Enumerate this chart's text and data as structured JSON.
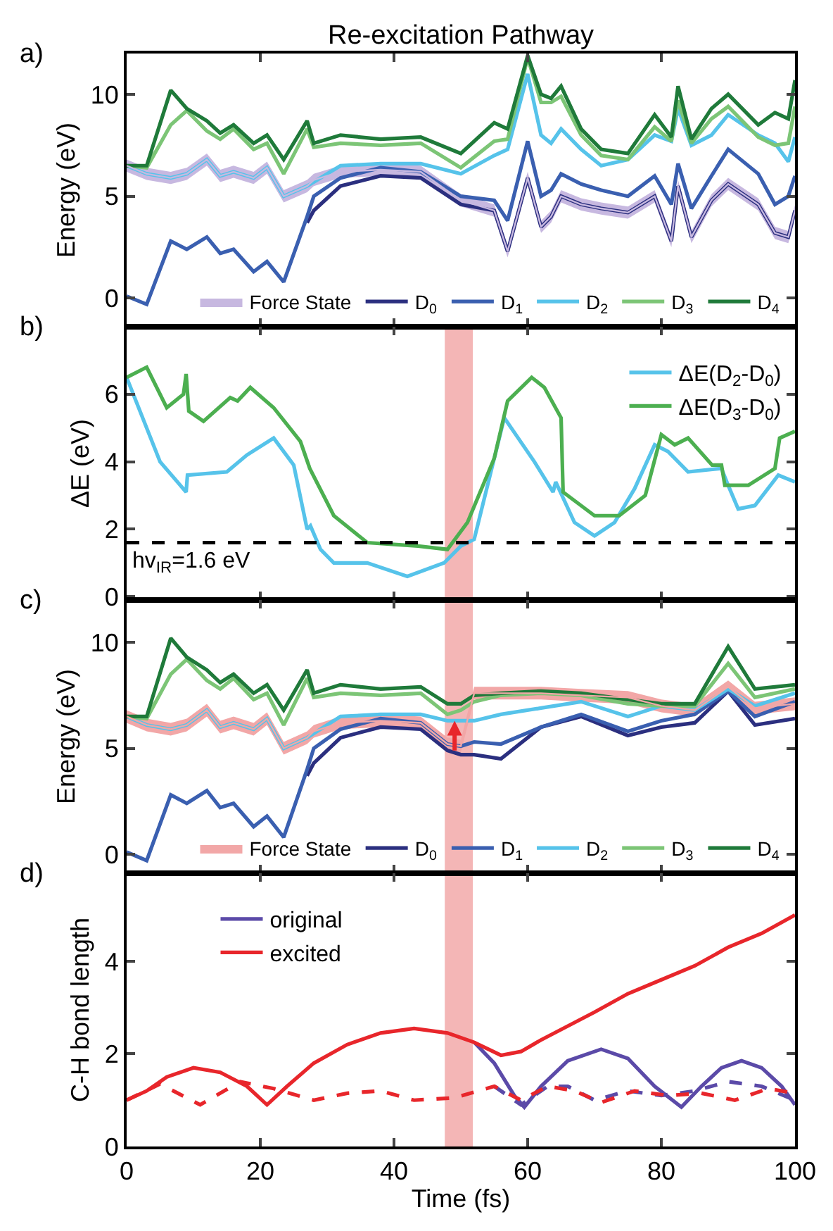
{
  "chart_data": [
    {
      "type": "line",
      "title": "Re-excitation Pathway",
      "ylabel": "Energy (eV)",
      "annotations": [
        "a)"
      ],
      "xlim": [
        0,
        100
      ],
      "xticks": [
        0,
        20,
        40,
        60,
        80,
        100
      ],
      "ylim": [
        -1.4,
        12
      ],
      "yticks": [
        0,
        5,
        10
      ],
      "tick_labels": "y",
      "legend": "bottom right",
      "marker": "none",
      "x": [
        0,
        3,
        6.6,
        9,
        12,
        14,
        16,
        19,
        21,
        23.5,
        27,
        28,
        32,
        38,
        44,
        50,
        55,
        57,
        60,
        62,
        63.5,
        65,
        68,
        71,
        75,
        79,
        81.5,
        82.5,
        84.5,
        87.5,
        90,
        94.5,
        97,
        99,
        100
      ],
      "series": [
        {
          "name": "D$_{0}$",
          "color": "#2b2f7f",
          "values": [
            null,
            null,
            null,
            null,
            null,
            null,
            null,
            null,
            null,
            null,
            3.7,
            4.3,
            5.5,
            6.0,
            5.9,
            4.6,
            4.3,
            2.3,
            5.9,
            3.5,
            4.0,
            5.0,
            4.6,
            4.4,
            4.2,
            5.0,
            2.8,
            5.5,
            3.0,
            4.8,
            5.6,
            4.6,
            3.2,
            3.0,
            4.3
          ]
        },
        {
          "name": "D$_{1}$",
          "color": "#3a5fb0",
          "values": [
            0.1,
            -0.3,
            2.8,
            2.4,
            3.0,
            2.2,
            2.4,
            1.3,
            1.8,
            0.8,
            4.0,
            5.0,
            5.9,
            6.4,
            6.2,
            5.0,
            4.8,
            3.8,
            7.7,
            5.0,
            5.3,
            6.1,
            5.6,
            5.3,
            5.0,
            6.0,
            4.6,
            6.6,
            4.4,
            6.0,
            7.3,
            6.1,
            4.6,
            5.0,
            6.0
          ]
        },
        {
          "name": "D$_{2}$",
          "color": "#56c3ea",
          "values": [
            6.5,
            6.1,
            5.9,
            6.1,
            6.8,
            6.0,
            6.2,
            5.9,
            6.4,
            5.0,
            5.5,
            5.7,
            6.5,
            6.6,
            6.6,
            6.1,
            7.0,
            7.3,
            11.0,
            8.0,
            7.6,
            8.3,
            7.3,
            6.5,
            6.8,
            8.0,
            7.7,
            9.3,
            7.5,
            8.0,
            9.0,
            8.0,
            7.6,
            6.7,
            7.9
          ]
        },
        {
          "name": "D$_{3}$",
          "color": "#7cc576",
          "values": [
            6.5,
            6.4,
            8.5,
            9.2,
            8.2,
            7.8,
            8.3,
            7.3,
            7.6,
            6.1,
            8.3,
            7.4,
            7.6,
            7.5,
            7.6,
            6.4,
            7.7,
            7.8,
            11.8,
            9.6,
            9.6,
            9.9,
            8.0,
            7.0,
            6.8,
            8.4,
            7.7,
            9.7,
            7.6,
            8.8,
            9.4,
            7.9,
            7.5,
            7.6,
            9.4
          ]
        },
        {
          "name": "D$_{4}$",
          "color": "#1f7a3a",
          "values": [
            6.5,
            6.5,
            10.2,
            9.3,
            8.7,
            8.1,
            8.5,
            7.6,
            8.0,
            6.8,
            8.7,
            7.6,
            8.0,
            7.8,
            7.9,
            7.1,
            8.6,
            8.3,
            11.9,
            10.0,
            9.8,
            10.4,
            8.3,
            7.3,
            7.1,
            9.0,
            7.9,
            10.4,
            7.8,
            9.3,
            10.0,
            8.5,
            9.1,
            8.8,
            10.7
          ]
        },
        {
          "name": "Force State",
          "color": "#c7b8e0",
          "values": [
            6.5,
            6.1,
            5.9,
            6.1,
            6.8,
            6.0,
            6.2,
            5.9,
            6.4,
            5.0,
            5.5,
            5.8,
            6.2,
            6.3,
            6.2,
            4.8,
            4.3,
            2.3,
            5.9,
            3.5,
            4.0,
            5.0,
            4.6,
            4.4,
            4.2,
            5.0,
            2.8,
            5.5,
            3.0,
            4.8,
            5.6,
            4.6,
            3.2,
            3.0,
            4.3
          ],
          "lower": [
            6.2,
            5.8,
            5.6,
            5.8,
            6.5,
            5.7,
            5.9,
            5.6,
            6.1,
            4.7,
            5.2,
            5.5,
            5.9,
            6.0,
            5.9,
            4.5,
            4.0,
            2.0,
            5.6,
            3.2,
            3.7,
            4.7,
            4.3,
            4.1,
            3.9,
            4.7,
            2.5,
            5.2,
            2.7,
            4.5,
            5.3,
            4.3,
            2.9,
            2.7,
            4.0
          ],
          "upper": [
            6.8,
            6.4,
            6.2,
            6.4,
            7.1,
            6.3,
            6.5,
            6.2,
            6.7,
            5.3,
            5.8,
            6.1,
            6.5,
            6.6,
            6.5,
            5.1,
            4.6,
            2.6,
            6.2,
            3.8,
            4.3,
            5.3,
            4.9,
            4.7,
            4.5,
            5.3,
            3.1,
            5.8,
            3.3,
            5.1,
            5.9,
            4.9,
            3.5,
            3.3,
            4.6
          ]
        }
      ]
    },
    {
      "type": "line",
      "ylabel": "ΔE (eV)",
      "annotations": [
        "b)"
      ],
      "xlim": [
        0,
        100
      ],
      "xticks": [
        0,
        20,
        40,
        60,
        80,
        100
      ],
      "ylim": [
        -0.1,
        8
      ],
      "yticks": [
        0,
        2,
        4,
        6
      ],
      "tick_labels": "y",
      "legend": "top right",
      "marker": "none",
      "ref_lines": [
        {
          "axis": "y",
          "value": 1.6,
          "label": "hv$_{IR}$=1.6 eV",
          "color": "#000000",
          "line_style": "dashed"
        }
      ],
      "bands": [
        {
          "axis": "x",
          "from": 47.6,
          "to": 51.8,
          "color": "#f4b6b6"
        }
      ],
      "series": [
        {
          "name": "ΔE(D$_{2}$-D$_{0}$)",
          "color": "#56c3ea",
          "x": [
            0,
            5,
            8.9,
            9.1,
            15,
            18,
            22,
            25,
            27,
            27.5,
            29,
            31,
            36,
            42,
            47.5,
            50,
            52,
            56.5,
            61,
            63.8,
            64.2,
            67,
            70,
            73,
            76,
            79,
            81,
            84,
            89,
            90,
            91.5,
            94,
            97.5,
            100
          ],
          "values": [
            6.5,
            4.0,
            3.1,
            3.6,
            3.7,
            4.2,
            4.7,
            3.9,
            2.0,
            2.1,
            1.4,
            1.0,
            1.0,
            0.6,
            1.0,
            1.5,
            1.7,
            5.3,
            4.0,
            3.1,
            3.4,
            2.2,
            1.8,
            2.2,
            3.2,
            4.5,
            4.3,
            3.7,
            3.8,
            3.3,
            2.6,
            2.7,
            3.6,
            3.4
          ]
        },
        {
          "name": "ΔE(D$_{3}$-D$_{0}$)",
          "color": "#4caf50",
          "x": [
            0,
            3,
            6,
            8.5,
            8.9,
            9.3,
            11.5,
            15.5,
            16.6,
            18.5,
            22,
            26,
            27.4,
            31,
            36,
            43.6,
            48,
            51,
            55,
            57,
            60.6,
            62.5,
            65,
            65.3,
            70,
            73.7,
            77.6,
            80,
            82,
            84,
            87.6,
            89,
            89.5,
            93,
            97,
            97.7,
            100
          ],
          "values": [
            6.5,
            6.8,
            5.6,
            6.0,
            6.6,
            5.5,
            5.2,
            5.9,
            5.8,
            6.2,
            5.6,
            4.6,
            3.8,
            2.4,
            1.6,
            1.5,
            1.4,
            2.2,
            4.1,
            5.8,
            6.5,
            6.2,
            5.3,
            3.1,
            2.4,
            2.4,
            3.0,
            4.8,
            4.5,
            4.7,
            3.9,
            3.9,
            3.3,
            3.3,
            3.8,
            4.7,
            4.9
          ]
        }
      ]
    },
    {
      "type": "line",
      "ylabel": "Energy (eV)",
      "annotations": [
        "c)"
      ],
      "xlim": [
        0,
        100
      ],
      "xticks": [
        0,
        20,
        40,
        60,
        80,
        100
      ],
      "ylim": [
        -0.9,
        12
      ],
      "yticks": [
        0,
        5,
        10
      ],
      "tick_labels": "y",
      "legend": "bottom right",
      "marker": "none",
      "bands": [
        {
          "axis": "x",
          "from": 47.6,
          "to": 51.8,
          "color": "#f4b6b6"
        }
      ],
      "x": [
        0,
        3,
        6.6,
        9,
        12,
        14,
        16,
        19,
        21,
        23.5,
        27,
        28,
        32,
        38,
        44,
        48,
        50,
        52,
        56,
        62,
        68,
        75,
        80,
        85,
        90,
        94,
        100
      ],
      "series": [
        {
          "name": "D$_{0}$",
          "color": "#2b2f7f",
          "values": [
            null,
            null,
            null,
            null,
            null,
            null,
            null,
            null,
            null,
            null,
            3.7,
            4.3,
            5.5,
            6.0,
            5.9,
            4.9,
            4.7,
            4.7,
            4.5,
            6.0,
            6.5,
            5.6,
            6.0,
            6.2,
            7.7,
            6.1,
            6.4
          ]
        },
        {
          "name": "D$_{1}$",
          "color": "#3a5fb0",
          "values": [
            0.1,
            -0.3,
            2.8,
            2.4,
            3.0,
            2.2,
            2.4,
            1.3,
            1.8,
            0.8,
            4.0,
            5.0,
            5.9,
            6.4,
            6.2,
            5.2,
            5.1,
            5.3,
            5.2,
            6.0,
            6.6,
            5.8,
            6.3,
            6.6,
            7.7,
            6.5,
            7.2
          ]
        },
        {
          "name": "D$_{2}$",
          "color": "#56c3ea",
          "values": [
            6.5,
            6.1,
            5.9,
            6.1,
            6.8,
            6.0,
            6.2,
            5.9,
            6.4,
            5.0,
            5.5,
            5.7,
            6.5,
            6.6,
            6.6,
            6.3,
            6.3,
            6.3,
            6.6,
            6.9,
            7.2,
            6.5,
            7.0,
            6.8,
            7.8,
            7.0,
            7.6
          ]
        },
        {
          "name": "D$_{3}$",
          "color": "#7cc576",
          "values": [
            6.5,
            6.4,
            8.5,
            9.2,
            8.2,
            7.8,
            8.3,
            7.3,
            7.6,
            6.1,
            8.3,
            7.4,
            7.6,
            7.5,
            7.6,
            6.6,
            6.8,
            7.2,
            7.5,
            7.6,
            7.5,
            7.1,
            7.0,
            7.0,
            9.0,
            7.4,
            7.8
          ]
        },
        {
          "name": "D$_{4}$",
          "color": "#1f7a3a",
          "values": [
            6.5,
            6.5,
            10.2,
            9.3,
            8.7,
            8.1,
            8.5,
            7.6,
            8.0,
            6.8,
            8.7,
            7.6,
            8.0,
            7.8,
            7.9,
            7.1,
            7.1,
            7.5,
            7.6,
            7.7,
            7.6,
            7.3,
            7.1,
            7.1,
            9.8,
            7.8,
            8.0
          ]
        },
        {
          "name": "Force State",
          "color": "#f2a7a7",
          "values": [
            6.5,
            6.1,
            5.9,
            6.1,
            6.8,
            6.0,
            6.2,
            5.9,
            6.4,
            5.0,
            5.5,
            5.8,
            6.2,
            6.3,
            6.2,
            5.2,
            5.1,
            7.6,
            7.6,
            7.6,
            7.5,
            7.4,
            7.0,
            6.8,
            7.9,
            6.9,
            7.1
          ],
          "lower": [
            6.2,
            5.8,
            5.6,
            5.8,
            6.5,
            5.7,
            5.9,
            5.6,
            6.1,
            4.7,
            5.2,
            5.5,
            5.9,
            6.0,
            5.9,
            4.9,
            4.8,
            7.3,
            7.3,
            7.3,
            7.2,
            7.1,
            6.7,
            6.5,
            7.6,
            6.6,
            6.8
          ],
          "upper": [
            6.8,
            6.4,
            6.2,
            6.4,
            7.1,
            6.3,
            6.5,
            6.2,
            6.7,
            5.3,
            5.8,
            6.1,
            6.5,
            6.6,
            6.5,
            5.5,
            5.4,
            7.9,
            7.9,
            7.9,
            7.8,
            7.7,
            7.3,
            7.1,
            8.2,
            7.2,
            7.4
          ]
        }
      ]
    },
    {
      "type": "line",
      "xlabel": "Time (fs)",
      "ylabel": "C-H bond length",
      "annotations": [
        "d)"
      ],
      "xlim": [
        0,
        100
      ],
      "xticks": [
        0,
        20,
        40,
        60,
        80,
        100
      ],
      "ylim": [
        0,
        5.9
      ],
      "yticks": [
        0,
        2,
        4
      ],
      "legend": "top left",
      "marker": "none",
      "bands": [
        {
          "axis": "x",
          "from": 47.6,
          "to": 51.8,
          "color": "#f4b6b6"
        }
      ],
      "series": [
        {
          "name": "original",
          "color": "#5b4aa8",
          "line_style": "solid",
          "x": [
            52,
            55,
            58,
            59.5,
            62,
            66,
            71,
            75,
            79,
            83,
            86,
            89,
            92,
            95,
            98,
            100
          ],
          "values": [
            2.25,
            1.8,
            1.1,
            0.85,
            1.3,
            1.85,
            2.1,
            1.9,
            1.3,
            0.85,
            1.3,
            1.7,
            1.85,
            1.7,
            1.3,
            0.9
          ]
        },
        {
          "color": "#5b4aa8",
          "line_style": "dashed",
          "x": [
            55,
            59,
            63,
            66,
            70,
            75,
            80,
            85,
            90,
            95,
            100
          ],
          "values": [
            1.3,
            0.9,
            1.3,
            1.3,
            1.0,
            1.2,
            1.1,
            1.2,
            1.4,
            1.3,
            1.0
          ]
        },
        {
          "name": "excited",
          "color": "#e8262b",
          "line_style": "solid",
          "x": [
            0,
            3,
            6,
            10,
            14,
            18,
            21,
            24,
            28,
            33,
            38,
            43,
            48,
            52,
            56,
            59,
            62,
            66,
            70,
            75,
            80,
            85,
            90,
            95,
            100
          ],
          "values": [
            1.0,
            1.2,
            1.5,
            1.7,
            1.6,
            1.3,
            0.9,
            1.3,
            1.8,
            2.2,
            2.45,
            2.55,
            2.45,
            2.25,
            1.97,
            2.05,
            2.3,
            2.6,
            2.9,
            3.3,
            3.6,
            3.9,
            4.3,
            4.6,
            5.0
          ]
        },
        {
          "color": "#e8262b",
          "line_style": "dashed",
          "x": [
            0,
            5,
            11,
            17,
            22,
            28,
            33,
            38,
            43,
            49,
            55,
            59,
            63,
            67,
            71,
            76,
            81,
            86,
            91,
            96,
            100
          ],
          "values": [
            1.0,
            1.35,
            0.9,
            1.4,
            1.25,
            1.0,
            1.15,
            1.2,
            1.0,
            1.05,
            1.3,
            1.0,
            1.3,
            1.2,
            0.95,
            1.2,
            1.1,
            1.15,
            1.0,
            1.25,
            1.15
          ]
        }
      ]
    }
  ]
}
